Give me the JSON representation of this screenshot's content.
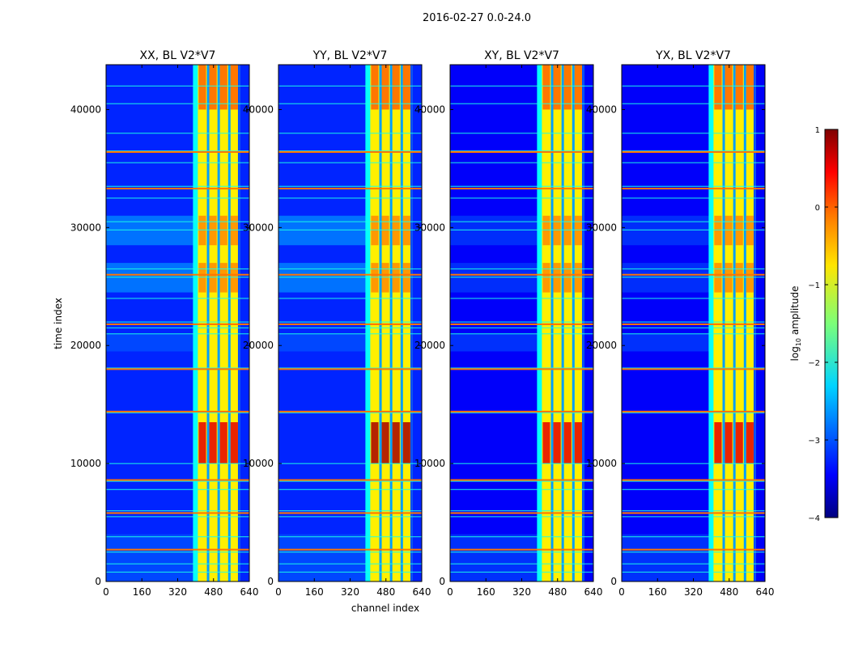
{
  "figure_title": "2016-02-27 0.0-24.0",
  "colormap": "jet",
  "chart_data": {
    "type": "heatmap",
    "suptitle": "2016-02-27 0.0-24.0",
    "xlabel": "channel index",
    "ylabel": "time index",
    "xlim": [
      0,
      640
    ],
    "ylim": [
      0,
      43800
    ],
    "x_ticks": [
      0,
      160,
      320,
      480,
      640
    ],
    "y_ticks": [
      0,
      10000,
      20000,
      30000,
      40000
    ],
    "colorbar": {
      "label_prefix": "log",
      "label_sub": "10",
      "label_suffix": " amplitude",
      "range": [
        -4,
        1
      ],
      "ticks": [
        1,
        0,
        -1,
        -2,
        -3,
        -4
      ],
      "tick_labels": [
        "1",
        "0",
        "−1",
        "−2",
        "−3",
        "−4"
      ]
    },
    "panels": [
      {
        "title": "XX, BL V2*V7",
        "band": [
          410,
          600
        ],
        "background_log10": -3.2,
        "band_log10": -0.8,
        "peak_log10": 0.5
      },
      {
        "title": "YY, BL V2*V7",
        "band": [
          410,
          600
        ],
        "background_log10": -3.2,
        "band_log10": -0.8,
        "peak_log10": 0.8
      },
      {
        "title": "XY, BL V2*V7",
        "band": [
          410,
          600
        ],
        "background_log10": -3.4,
        "band_log10": -0.8,
        "peak_log10": 0.5
      },
      {
        "title": "YX, BL V2*V7",
        "band": [
          410,
          600
        ],
        "background_log10": -3.4,
        "band_log10": -0.8,
        "peak_log10": 0.5
      }
    ],
    "rfi_rows_time_index": [
      42000,
      40500,
      38000,
      36500,
      35500,
      33500,
      32500,
      30500,
      29800,
      26500,
      25800,
      24000,
      22000,
      21500,
      21000,
      18100,
      14300,
      10000,
      8500,
      7800,
      6000,
      5500,
      3800,
      2500,
      1500,
      800
    ],
    "strong_rows_time_index": [
      36400,
      33300,
      26000,
      21800,
      18000,
      14400,
      8600,
      5800,
      2700
    ],
    "bright_band_time_ranges": [
      [
        10000,
        13500
      ],
      [
        40000,
        43800
      ],
      [
        24500,
        27000
      ],
      [
        28500,
        31000
      ]
    ],
    "quiet_band_time_ranges": [
      [
        19500,
        21000
      ],
      [
        0,
        4000
      ]
    ]
  }
}
